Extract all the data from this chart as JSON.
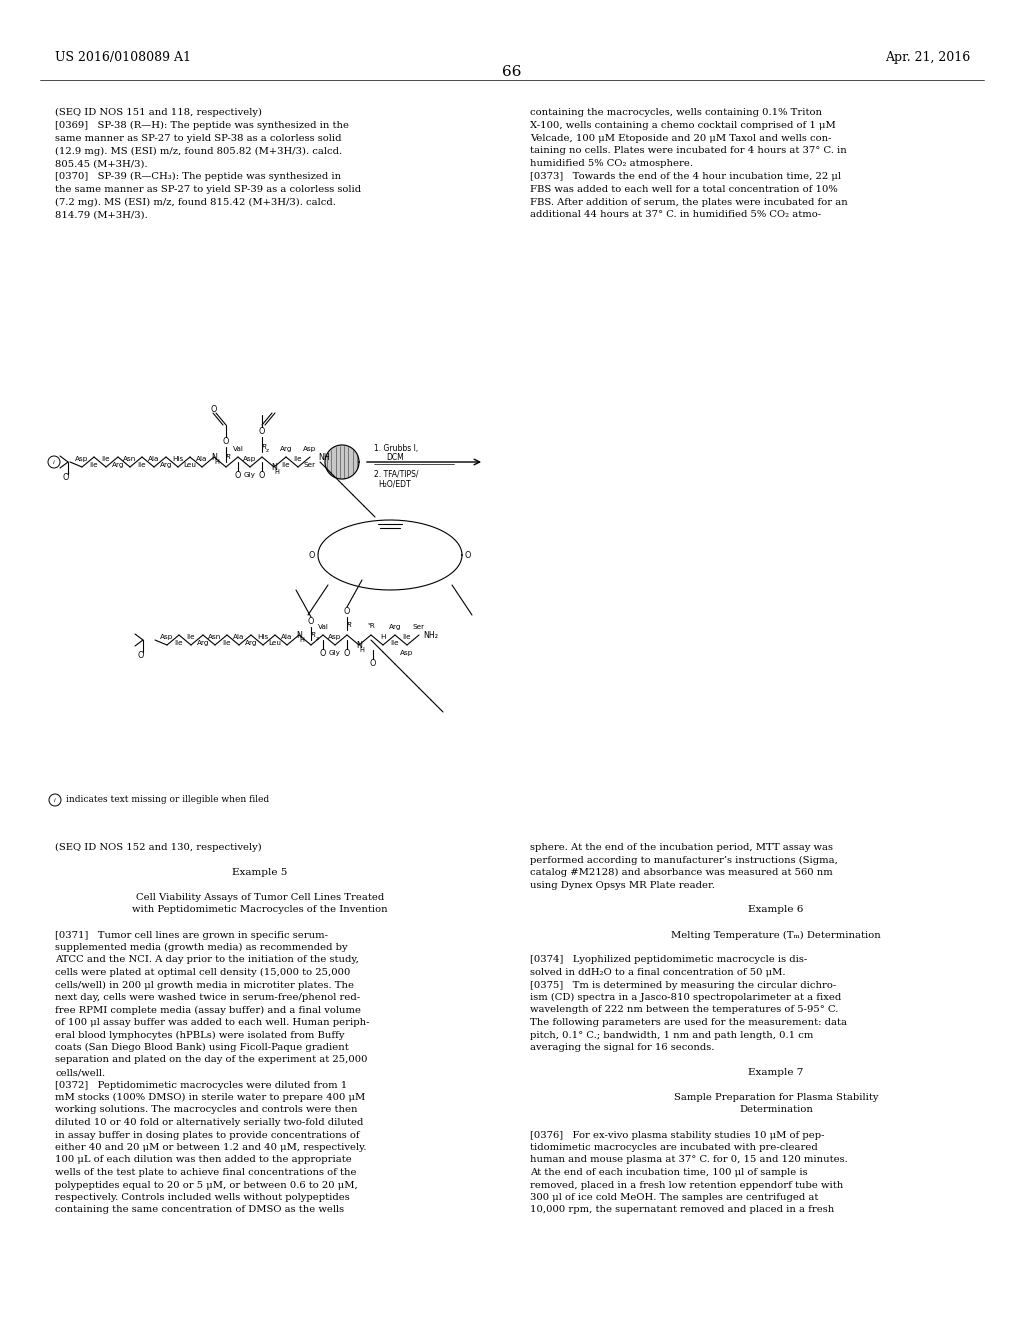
{
  "page_number": "66",
  "patent_number": "US 2016/0108089 A1",
  "patent_date": "Apr. 21, 2016",
  "background_color": "#ffffff",
  "text_color": "#000000",
  "left_col_text": [
    "(SEQ ID NOS 151 and 118, respectively)",
    "[0369]   SP-38 (R—H): The peptide was synthesized in the",
    "same manner as SP-27 to yield SP-38 as a colorless solid",
    "(12.9 mg). MS (ESI) m/z, found 805.82 (M+3H/3). calcd.",
    "805.45 (M+3H/3).",
    "[0370]   SP-39 (R—CH₃): The peptide was synthesized in",
    "the same manner as SP-27 to yield SP-39 as a colorless solid",
    "(7.2 mg). MS (ESI) m/z, found 815.42 (M+3H/3). calcd.",
    "814.79 (M+3H/3)."
  ],
  "right_col_text": [
    "containing the macrocycles, wells containing 0.1% Triton",
    "X-100, wells containing a chemo cocktail comprised of 1 μM",
    "Velcade, 100 μM Etoposide and 20 μM Taxol and wells con-",
    "taining no cells. Plates were incubated for 4 hours at 37° C. in",
    "humidified 5% CO₂ atmosphere.",
    "[0373]   Towards the end of the 4 hour incubation time, 22 μl",
    "FBS was added to each well for a total concentration of 10%",
    "FBS. After addition of serum, the plates were incubated for an",
    "additional 44 hours at 37° C. in humidified 5% CO₂ atmo-"
  ],
  "bottom_left_col": [
    "(SEQ ID NOS 152 and 130, respectively)",
    "",
    "Example 5",
    "",
    "Cell Viability Assays of Tumor Cell Lines Treated",
    "with Peptidomimetic Macrocycles of the Invention",
    "",
    "[0371]   Tumor cell lines are grown in specific serum-",
    "supplemented media (growth media) as recommended by",
    "ATCC and the NCI. A day prior to the initiation of the study,",
    "cells were plated at optimal cell density (15,000 to 25,000",
    "cells/well) in 200 μl growth media in microtiter plates. The",
    "next day, cells were washed twice in serum-free/phenol red-",
    "free RPMI complete media (assay buffer) and a final volume",
    "of 100 μl assay buffer was added to each well. Human periph-",
    "eral blood lymphocytes (hPBLs) were isolated from Buffy",
    "coats (San Diego Blood Bank) using Ficoll-Paque gradient",
    "separation and plated on the day of the experiment at 25,000",
    "cells/well.",
    "[0372]   Peptidomimetic macrocycles were diluted from 1",
    "mM stocks (100% DMSO) in sterile water to prepare 400 μM",
    "working solutions. The macrocycles and controls were then",
    "diluted 10 or 40 fold or alternatively serially two-fold diluted",
    "in assay buffer in dosing plates to provide concentrations of",
    "either 40 and 20 μM or between 1.2 and 40 μM, respectively.",
    "100 μL of each dilution was then added to the appropriate",
    "wells of the test plate to achieve final concentrations of the",
    "polypeptides equal to 20 or 5 μM, or between 0.6 to 20 μM,",
    "respectively. Controls included wells without polypeptides",
    "containing the same concentration of DMSO as the wells"
  ],
  "bottom_right_col": [
    "sphere. At the end of the incubation period, MTT assay was",
    "performed according to manufacturer’s instructions (Sigma,",
    "catalog #M2128) and absorbance was measured at 560 nm",
    "using Dynex Opsys MR Plate reader.",
    "",
    "Example 6",
    "",
    "Melting Temperature (Tₘ) Determination",
    "",
    "[0374]   Lyophilized peptidomimetic macrocycle is dis-",
    "solved in ddH₂O to a final concentration of 50 μM.",
    "[0375]   Tm is determined by measuring the circular dichro-",
    "ism (CD) spectra in a Jasco-810 spectropolarimeter at a fixed",
    "wavelength of 222 nm between the temperatures of 5-95° C.",
    "The following parameters are used for the measurement: data",
    "pitch, 0.1° C.; bandwidth, 1 nm and path length, 0.1 cm",
    "averaging the signal for 16 seconds.",
    "",
    "Example 7",
    "",
    "Sample Preparation for Plasma Stability",
    "Determination",
    "",
    "[0376]   For ex-vivo plasma stability studies 10 μM of pep-",
    "tidomimetic macrocycles are incubated with pre-cleared",
    "human and mouse plasma at 37° C. for 0, 15 and 120 minutes.",
    "At the end of each incubation time, 100 μl of sample is",
    "removed, placed in a fresh low retention eppendorf tube with",
    "300 μl of ice cold MeOH. The samples are centrifuged at",
    "10,000 rpm, the supernatant removed and placed in a fresh"
  ]
}
